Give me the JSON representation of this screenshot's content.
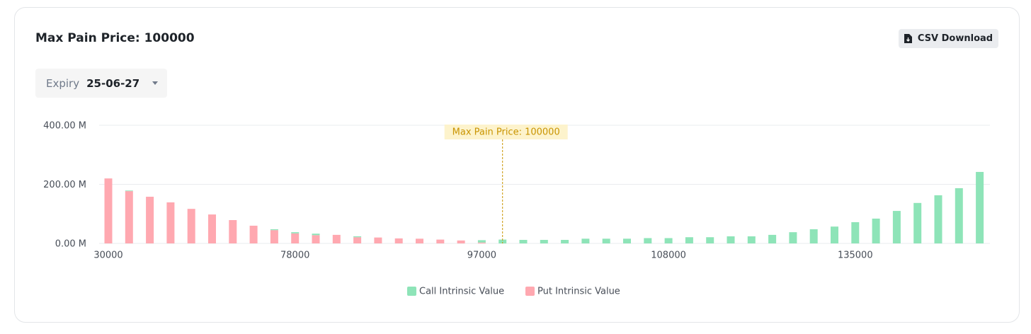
{
  "header": {
    "title": "Max Pain Price: 100000",
    "button": "CSV Download"
  },
  "filter": {
    "label": "Expiry",
    "value": "25-06-27"
  },
  "chart_data": {
    "type": "bar",
    "stacked": true,
    "annotation": "Max Pain Price: 100000",
    "categories": [
      "30000",
      null,
      null,
      null,
      null,
      null,
      null,
      null,
      null,
      "78000",
      null,
      null,
      null,
      null,
      null,
      null,
      null,
      null,
      "97000",
      null,
      null,
      null,
      null,
      null,
      null,
      null,
      null,
      "108000",
      null,
      null,
      null,
      null,
      null,
      null,
      null,
      null,
      "135000",
      null,
      null,
      null,
      null,
      null,
      null
    ],
    "series": [
      {
        "name": "Put Intrinsic Value",
        "color": "#ffa8b0",
        "values": [
          220,
          177,
          158,
          139,
          117,
          98,
          79,
          60,
          45,
          34,
          28,
          29,
          21,
          20,
          17,
          16,
          13,
          10,
          3,
          0,
          0,
          0,
          0,
          0,
          0,
          0,
          0,
          0,
          0,
          0,
          0,
          0,
          0,
          0,
          0,
          0,
          0,
          0,
          0,
          0,
          0,
          0,
          0
        ]
      },
      {
        "name": "Call Intrinsic Value",
        "color": "#8ee4b8",
        "values": [
          0,
          2,
          0,
          0,
          0,
          0,
          0,
          0,
          3,
          4,
          5,
          0,
          3,
          0,
          0,
          0,
          0,
          0,
          8,
          13,
          12,
          12,
          12,
          16,
          16,
          16,
          18,
          18,
          21,
          21,
          24,
          24,
          29,
          38,
          48,
          57,
          72,
          84,
          110,
          137,
          163,
          187,
          242
        ]
      }
    ],
    "ylim": [
      0,
      400
    ],
    "yticks": [
      {
        "value": 0,
        "label": "0.00 M"
      },
      {
        "value": 200,
        "label": "200.00 M"
      },
      {
        "value": 400,
        "label": "400.00 M"
      }
    ],
    "grid": true
  }
}
